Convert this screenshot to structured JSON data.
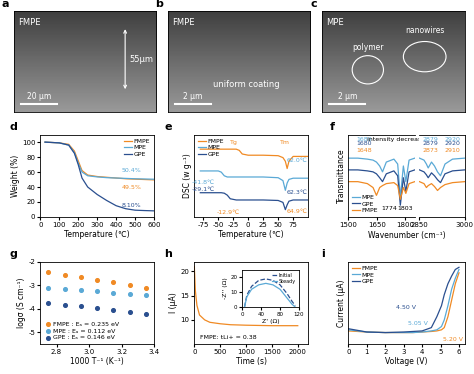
{
  "images": [
    {
      "panel": "a",
      "label": "FMPE",
      "scale_bar": "20 μm",
      "notes": [
        "55μm"
      ]
    },
    {
      "panel": "b",
      "label": "FMPE",
      "scale_bar": "2 μm",
      "notes": [
        "uniform coating"
      ]
    },
    {
      "panel": "c",
      "label": "MPE",
      "scale_bar": "2 μm",
      "notes": [
        "nanowires",
        "polymer"
      ]
    }
  ],
  "chart_data": [
    {
      "title": "d",
      "type": "line",
      "xlabel": "Temperature (℃)",
      "ylabel": "Weight (%)",
      "x": [
        25,
        100,
        150,
        180,
        200,
        220,
        250,
        300,
        350,
        400,
        450,
        500,
        550,
        600
      ],
      "series": [
        {
          "name": "FMPE",
          "color": "#f08a24",
          "values": [
            100,
            99,
            97,
            88,
            75,
            62,
            56,
            54,
            53,
            52,
            51,
            50.5,
            50,
            49.5
          ]
        },
        {
          "name": "MPE",
          "color": "#5aa9d6",
          "values": [
            100,
            99,
            96,
            86,
            72,
            60,
            55,
            53.5,
            52.5,
            52,
            51.5,
            51,
            50.7,
            50.4
          ]
        },
        {
          "name": "GPE",
          "color": "#2a4f8f",
          "values": [
            100,
            99,
            96,
            85,
            70,
            52,
            40,
            30,
            22,
            15,
            11,
            9,
            8.5,
            8.1
          ]
        }
      ],
      "xlim": [
        0,
        600
      ],
      "xticks": [
        0,
        100,
        200,
        300,
        400,
        500,
        600
      ],
      "ylim": [
        0,
        110
      ],
      "yticks": [
        0,
        20,
        40,
        60,
        80,
        100
      ],
      "legend": "upper right",
      "annotations": [
        {
          "text": "50.4%",
          "color": "#5aa9d6"
        },
        {
          "text": "49.5%",
          "color": "#f08a24"
        },
        {
          "text": "8.10%",
          "color": "#2a4f8f"
        }
      ]
    },
    {
      "title": "e",
      "type": "line",
      "xlabel": "Temperature (℃)",
      "ylabel": "DSC (w g⁻¹)",
      "x": [
        -80,
        -60,
        -50,
        -45,
        -40,
        -35,
        -30,
        -20,
        -15,
        -10,
        0,
        25,
        50,
        58,
        62,
        65,
        68,
        75,
        100
      ],
      "series": [
        {
          "name": "FMPE",
          "color": "#f08a24",
          "values": [
            0.6,
            0.6,
            0.6,
            0.6,
            0.6,
            0.6,
            0.6,
            0.6,
            0.55,
            0.4,
            0.35,
            0.35,
            0.33,
            0.25,
            0.1,
            -0.2,
            0.1,
            0.3,
            0.3
          ]
        },
        {
          "name": "MPE",
          "color": "#5aa9d6",
          "values": [
            -0.3,
            -0.3,
            -0.3,
            -0.35,
            -0.5,
            -0.55,
            -0.55,
            -0.55,
            -0.55,
            -0.55,
            -0.55,
            -0.55,
            -0.58,
            -0.7,
            -1.1,
            -0.8,
            -0.65,
            -0.6,
            -0.6
          ]
        },
        {
          "name": "GPE",
          "color": "#2a4f8f",
          "values": [
            -1.2,
            -1.2,
            -1.2,
            -1.2,
            -1.22,
            -1.3,
            -1.45,
            -1.5,
            -1.5,
            -1.5,
            -1.5,
            -1.5,
            -1.52,
            -1.6,
            -1.9,
            -1.7,
            -1.55,
            -1.5,
            -1.5
          ]
        }
      ],
      "xlim": [
        -90,
        100
      ],
      "xticks": [
        -75,
        -50,
        -25,
        0,
        25,
        50,
        75
      ],
      "ylim": [
        -2.2,
        1.2
      ],
      "tick_labels": "x",
      "legend": "upper left",
      "annotations": [
        {
          "text": "Tg",
          "color": "#f08a24"
        },
        {
          "text": "Tm",
          "color": "#f08a24"
        },
        {
          "text": "-41.8℃",
          "color": "#5aa9d6"
        },
        {
          "text": "-29.1℃",
          "color": "#2a4f8f"
        },
        {
          "text": "-12.9℃",
          "color": "#f08a24"
        },
        {
          "text": "62.0℃",
          "color": "#5aa9d6"
        },
        {
          "text": "62.3℃",
          "color": "#2a4f8f"
        },
        {
          "text": "64.9℃",
          "color": "#f08a24"
        }
      ]
    },
    {
      "title": "f",
      "type": "line",
      "xlabel": "Wavenumber (cm⁻¹)",
      "ylabel": "Transmittance",
      "x": [
        1500,
        1550,
        1600,
        1630,
        1648,
        1665,
        1680,
        1700,
        1740,
        1760,
        1774,
        1790,
        1803,
        1820,
        1850
      ],
      "series": [
        {
          "name": "MPE",
          "color": "#5aa9d6",
          "values": [
            3.0,
            3.0,
            2.95,
            2.9,
            2.8,
            2.6,
            2.3,
            2.8,
            2.95,
            2.7,
            1.0,
            2.6,
            1.8,
            2.9,
            3.0
          ]
        },
        {
          "name": "GPE",
          "color": "#2a4f8f",
          "values": [
            2.4,
            2.4,
            2.35,
            2.3,
            2.2,
            2.0,
            1.8,
            2.2,
            2.35,
            2.1,
            0.6,
            2.0,
            1.3,
            2.3,
            2.4
          ]
        },
        {
          "name": "FMPE",
          "color": "#f08a24",
          "values": [
            1.8,
            1.8,
            1.7,
            1.5,
            1.1,
            1.5,
            1.6,
            1.7,
            1.75,
            1.6,
            0.9,
            1.5,
            1.2,
            1.7,
            1.8
          ]
        }
      ],
      "xlim": [
        1500,
        1850
      ],
      "xticks": [
        1500,
        1650,
        1800
      ],
      "ylim": [
        0,
        4.2
      ],
      "tick_labels": "x",
      "legend": "lower left",
      "annotations": [
        {
          "text": "1680",
          "color": "#5aa9d6"
        },
        {
          "text": "1680",
          "color": "#2a4f8f"
        },
        {
          "text": "1648",
          "color": "#f08a24"
        },
        {
          "text": "1774",
          "color": "#000000"
        },
        {
          "text": "1803",
          "color": "#000000"
        },
        {
          "text": "intensity decrease",
          "color": "#000000"
        }
      ]
    },
    {
      "type": "line",
      "x": [
        2850,
        2865,
        2873,
        2879,
        2890,
        2900,
        2910,
        2920,
        2935,
        2960,
        3000
      ],
      "series": [
        {
          "color": "#5aa9d6",
          "values": [
            3.0,
            2.9,
            2.7,
            2.5,
            2.8,
            2.6,
            2.3,
            2.1,
            2.7,
            2.95,
            3.0
          ]
        },
        {
          "color": "#2a4f8f",
          "values": [
            2.4,
            2.3,
            2.15,
            2.0,
            2.25,
            2.1,
            1.9,
            1.75,
            2.2,
            2.35,
            2.4
          ]
        },
        {
          "color": "#f08a24",
          "values": [
            1.8,
            1.7,
            1.5,
            1.6,
            1.7,
            1.55,
            1.35,
            1.5,
            1.65,
            1.75,
            1.8
          ]
        }
      ],
      "xlim": [
        2850,
        3000
      ],
      "xticks": [
        2850,
        3000
      ],
      "ylim": [
        0,
        4.2
      ],
      "tick_labels": "x",
      "annotations": [
        {
          "text": "2879",
          "color": "#5aa9d6"
        },
        {
          "text": "2879",
          "color": "#2a4f8f"
        },
        {
          "text": "2873",
          "color": "#f08a24"
        },
        {
          "text": "2920",
          "color": "#5aa9d6"
        },
        {
          "text": "2920",
          "color": "#2a4f8f"
        },
        {
          "text": "2910",
          "color": "#f08a24"
        }
      ]
    },
    {
      "title": "g",
      "type": "scatter",
      "marker": "circle",
      "xlabel": "1000 T⁻¹ (K⁻¹)",
      "ylabel": "logσ (S cm⁻¹)",
      "x": [
        2.75,
        2.85,
        2.95,
        3.05,
        3.15,
        3.25,
        3.35
      ],
      "series": [
        {
          "name": "FMPE : Eₐ = 0.235 eV",
          "color": "#f08a24",
          "values": [
            -2.45,
            -2.55,
            -2.65,
            -2.77,
            -2.88,
            -3.0,
            -3.12
          ]
        },
        {
          "name": "MPE : Eₐ = 0.112 eV",
          "color": "#5aa9d6",
          "values": [
            -3.1,
            -3.15,
            -3.2,
            -3.26,
            -3.31,
            -3.37,
            -3.43
          ]
        },
        {
          "name": "GPE : Eₐ = 0.146 eV",
          "color": "#2a4f8f",
          "values": [
            -3.75,
            -3.82,
            -3.9,
            -3.98,
            -4.06,
            -4.14,
            -4.22
          ]
        }
      ],
      "xlim": [
        2.7,
        3.4
      ],
      "xticks": [
        2.8,
        3.0,
        3.2,
        3.4
      ],
      "ylim": [
        -5.5,
        -2
      ],
      "yticks": [
        -5,
        -4,
        -3,
        -2
      ],
      "legend": "lower left"
    },
    {
      "title": "h",
      "type": "line",
      "xlabel": "Time (s)",
      "ylabel": "I (μA)",
      "x": [
        0,
        20,
        50,
        100,
        200,
        300,
        500,
        700,
        1000,
        1500,
        2000
      ],
      "series": [
        {
          "color": "#f08a24",
          "values": [
            21,
            16,
            13,
            11,
            10,
            9.5,
            9.2,
            9.0,
            8.9,
            8.8,
            8.8
          ]
        }
      ],
      "xlim": [
        0,
        2200
      ],
      "xticks": [
        0,
        500,
        1000,
        1500,
        2000
      ],
      "ylim": [
        5,
        22
      ],
      "yticks": [
        10,
        15,
        20
      ],
      "annotations": [
        {
          "text": "FMPE: tLi+ = 0.38",
          "color": "#000000"
        }
      ]
    },
    {
      "type": "line",
      "xlabel": "Z' (Ω)",
      "ylabel": "-Z'' (Ω)",
      "x": [
        5,
        10,
        20,
        35,
        50,
        65,
        80,
        95,
        105,
        112
      ],
      "series": [
        {
          "name": "Initial",
          "color": "#2a4f8f",
          "line_style": "dashed",
          "values": [
            0,
            8,
            14,
            18,
            19,
            18,
            15,
            9,
            4,
            1
          ]
        },
        {
          "name": "Steady",
          "color": "#5aa9d6",
          "line_style": "solid",
          "values": [
            0,
            7,
            12,
            15,
            16,
            15,
            12,
            6,
            2,
            0
          ]
        }
      ],
      "xlim": [
        0,
        120
      ],
      "xticks": [
        0,
        40,
        80,
        120
      ],
      "ylim": [
        0,
        25
      ],
      "yticks": [
        0,
        10,
        20
      ],
      "legend": "upper right"
    },
    {
      "title": "i",
      "type": "line",
      "xlabel": "Voltage (V)",
      "ylabel": "Current (μA)",
      "x": [
        0,
        1,
        2,
        3,
        3.5,
        4,
        4.5,
        4.8,
        5.05,
        5.2,
        5.4,
        5.6,
        5.8,
        6
      ],
      "series": [
        {
          "name": "FMPE",
          "color": "#f08a24",
          "values": [
            0.2,
            0.1,
            0.05,
            0.05,
            0.05,
            0.1,
            0.15,
            0.2,
            0.3,
            0.5,
            1.5,
            3,
            4.5,
            5.5
          ]
        },
        {
          "name": "MPE",
          "color": "#5aa9d6",
          "values": [
            0.3,
            0.1,
            0.05,
            0.05,
            0.05,
            0.1,
            0.2,
            0.3,
            0.6,
            1.2,
            2.5,
            4,
            5,
            5.8
          ]
        },
        {
          "name": "GPE",
          "color": "#2a4f8f",
          "values": [
            0.4,
            0.1,
            0.05,
            0.1,
            0.15,
            0.2,
            0.5,
            1.5,
            2.5,
            3.5,
            4.5,
            5.2,
            5.8,
            6.0
          ]
        }
      ],
      "xlim": [
        0,
        6.3
      ],
      "xticks": [
        0,
        1,
        2,
        3,
        4,
        5,
        6
      ],
      "ylim": [
        -1,
        6.5
      ],
      "tick_labels": "x",
      "legend": "upper left",
      "annotations": [
        {
          "text": "4.50 V",
          "color": "#2a4f8f"
        },
        {
          "text": "5.05 V",
          "color": "#5aa9d6"
        },
        {
          "text": "5.20 V",
          "color": "#f08a24"
        }
      ]
    }
  ]
}
